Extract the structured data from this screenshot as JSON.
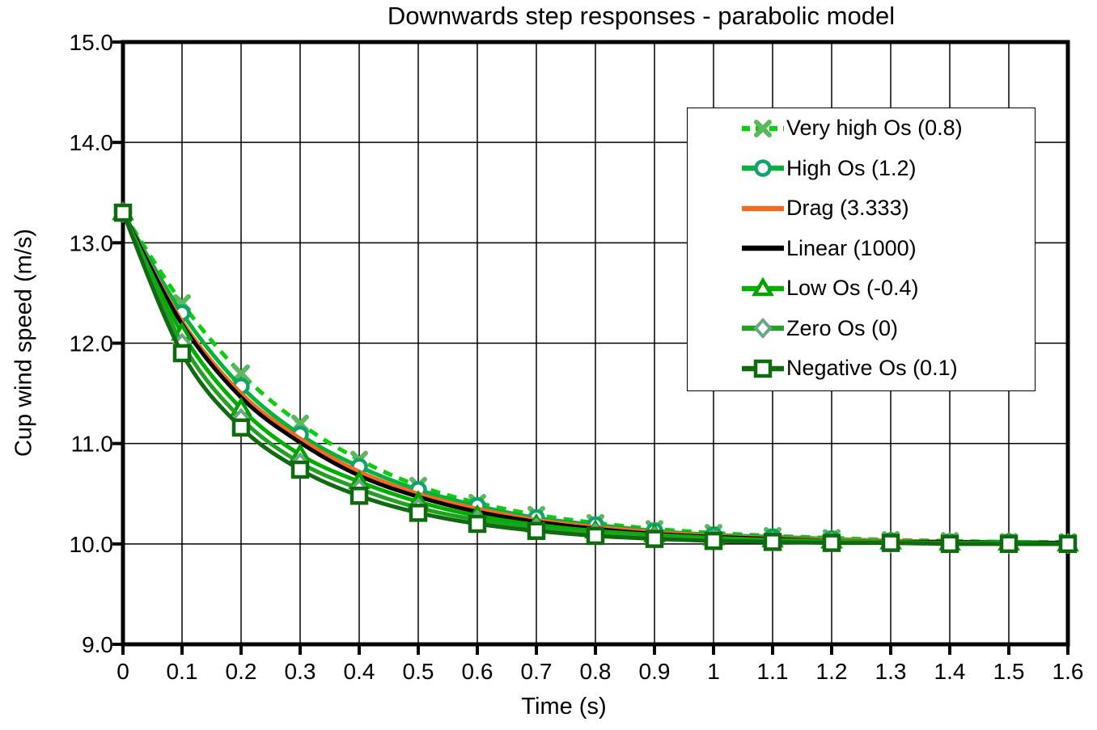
{
  "chart_data": {
    "type": "line",
    "title": "Downwards step responses - parabolic model",
    "xlabel": "Time (s)",
    "ylabel": "Cup wind speed (m/s)",
    "xlim": [
      0,
      1.6
    ],
    "ylim": [
      9.0,
      15.0
    ],
    "grid": true,
    "legend_position": "upper-right",
    "x_tick_labels": [
      "0",
      "0.1",
      "0.2",
      "0.3",
      "0.4",
      "0.5",
      "0.6",
      "0.7",
      "0.8",
      "0.9",
      "1",
      "1.1",
      "1.2",
      "1.3",
      "1.4",
      "1.5",
      "1.6"
    ],
    "y_tick_labels": [
      "9.0",
      "10.0",
      "11.0",
      "12.0",
      "13.0",
      "14.0",
      "15.0"
    ],
    "x": [
      0,
      0.1,
      0.2,
      0.3,
      0.4,
      0.5,
      0.6,
      0.7,
      0.8,
      0.9,
      1.0,
      1.1,
      1.2,
      1.3,
      1.4,
      1.5,
      1.6
    ],
    "series": [
      {
        "name": "Very high Os (0.8)",
        "line_color": "#0FCC0F",
        "marker_color": "#5CB85C",
        "marker": "x",
        "dash": "dashed",
        "values": [
          13.3,
          12.4,
          11.7,
          11.2,
          10.84,
          10.58,
          10.41,
          10.29,
          10.21,
          10.15,
          10.11,
          10.08,
          10.06,
          10.04,
          10.03,
          10.02,
          10.02
        ]
      },
      {
        "name": "High Os (1.2)",
        "line_color": "#00B43C",
        "marker_color": "#12A26E",
        "marker": "circle",
        "dash": "solid",
        "values": [
          13.3,
          12.3,
          11.57,
          11.09,
          10.77,
          10.54,
          10.38,
          10.26,
          10.19,
          10.13,
          10.09,
          10.07,
          10.05,
          10.03,
          10.02,
          10.02,
          10.01
        ]
      },
      {
        "name": "Drag (3.333)",
        "line_color": "#F26B21",
        "marker_color": "",
        "marker": "none",
        "dash": "solid",
        "values": [
          13.3,
          12.22,
          11.5,
          11.05,
          10.72,
          10.5,
          10.35,
          10.24,
          10.17,
          10.12,
          10.08,
          10.06,
          10.04,
          10.03,
          10.02,
          10.01,
          10.01
        ]
      },
      {
        "name": "Linear (1000)",
        "line_color": "#000000",
        "marker_color": "",
        "marker": "none",
        "dash": "solid",
        "values": [
          13.3,
          12.19,
          11.46,
          11.01,
          10.68,
          10.47,
          10.32,
          10.22,
          10.15,
          10.1,
          10.07,
          10.05,
          10.03,
          10.02,
          10.02,
          10.01,
          10.01
        ]
      },
      {
        "name": "Low Os (-0.4)",
        "line_color": "#00AF00",
        "marker_color": "#00A300",
        "marker": "triangle",
        "dash": "solid",
        "values": [
          13.3,
          12.1,
          11.35,
          10.89,
          10.62,
          10.42,
          10.28,
          10.19,
          10.13,
          10.09,
          10.06,
          10.04,
          10.03,
          10.02,
          10.01,
          10.01,
          10.0
        ]
      },
      {
        "name": "Zero Os (0)",
        "line_color": "#22A022",
        "marker_color": "#66A882",
        "marker": "diamond",
        "dash": "solid",
        "values": [
          13.3,
          12.0,
          11.25,
          10.81,
          10.55,
          10.36,
          10.24,
          10.16,
          10.11,
          10.07,
          10.05,
          10.03,
          10.02,
          10.01,
          10.01,
          10.0,
          10.0
        ]
      },
      {
        "name": "Negative Os (0.1)",
        "line_color": "#106B10",
        "marker_color": "#106B10",
        "marker": "square",
        "dash": "solid",
        "values": [
          13.3,
          11.9,
          11.16,
          10.74,
          10.48,
          10.31,
          10.2,
          10.13,
          10.08,
          10.05,
          10.03,
          10.02,
          10.01,
          10.01,
          10.0,
          10.0,
          10.0
        ]
      }
    ]
  }
}
